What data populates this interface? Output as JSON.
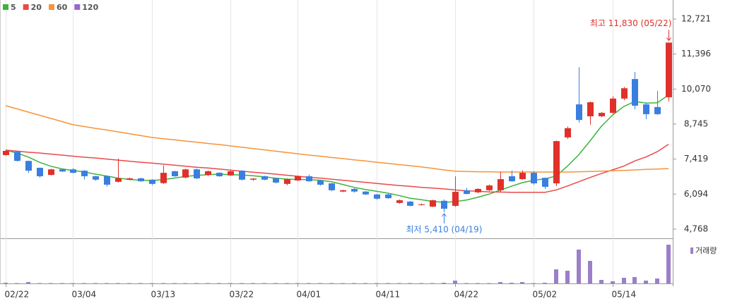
{
  "chart_data": {
    "type": "candlestick",
    "legend": "top-left",
    "up_color": "#e0302a",
    "down_color": "#3a7fe0",
    "categories": [
      "02/22",
      null,
      null,
      null,
      null,
      null,
      "03/04",
      null,
      null,
      null,
      null,
      null,
      null,
      "03/13",
      null,
      null,
      null,
      null,
      null,
      null,
      "03/22",
      null,
      null,
      null,
      null,
      null,
      "04/01",
      null,
      null,
      null,
      null,
      null,
      null,
      "04/11",
      null,
      null,
      null,
      null,
      null,
      null,
      "04/22",
      null,
      null,
      null,
      null,
      null,
      null,
      "05/02",
      null,
      null,
      null,
      null,
      null,
      null,
      "05/14",
      null,
      null,
      null,
      null,
      null
    ],
    "open": [
      7570,
      7700,
      7350,
      7090,
      6820,
      7030,
      7030,
      6980,
      6770,
      6770,
      6560,
      6640,
      6690,
      6640,
      6510,
      6960,
      6720,
      7030,
      6820,
      6900,
      6800,
      6980,
      6640,
      6770,
      6690,
      6480,
      6610,
      6770,
      6610,
      6500,
      6190,
      6290,
      6190,
      6080,
      6080,
      5760,
      5810,
      5680,
      5620,
      5840,
      5650,
      6240,
      6160,
      6240,
      6240,
      6770,
      6660,
      6900,
      6710,
      6500,
      8240,
      9490,
      9040,
      9040,
      9170,
      9710,
      10450,
      9490,
      9390,
      9760
    ],
    "high": [
      7780,
      7720,
      7360,
      7100,
      7050,
      7050,
      7080,
      7000,
      6790,
      6780,
      7440,
      6720,
      6720,
      6660,
      7180,
      6980,
      7050,
      7060,
      6990,
      6920,
      6990,
      7000,
      6700,
      6790,
      6710,
      6690,
      6800,
      6830,
      6630,
      6520,
      6260,
      6320,
      6210,
      6100,
      6100,
      5890,
      5830,
      5730,
      5880,
      5890,
      6770,
      6330,
      6320,
      6460,
      6930,
      6980,
      6990,
      6960,
      6720,
      8120,
      8650,
      10900,
      9600,
      9200,
      9800,
      10150,
      10720,
      9560,
      10000,
      11830
    ],
    "low": [
      7550,
      7330,
      6900,
      6720,
      6800,
      6930,
      6880,
      6650,
      6600,
      6380,
      6530,
      6620,
      6560,
      6430,
      6480,
      6750,
      6690,
      6660,
      6770,
      6750,
      6780,
      6610,
      6600,
      6620,
      6500,
      6430,
      6590,
      6560,
      6420,
      6200,
      6170,
      6150,
      6060,
      5880,
      5910,
      5730,
      5630,
      5660,
      5600,
      5410,
      5610,
      6080,
      6130,
      6210,
      6160,
      6560,
      6640,
      6450,
      6290,
      6400,
      8180,
      8800,
      8720,
      9000,
      9130,
      9650,
      9300,
      8930,
      9090,
      9600
    ],
    "close": [
      7730,
      7350,
      6980,
      6770,
      7030,
      6950,
      6900,
      6770,
      6640,
      6450,
      6690,
      6690,
      6580,
      6480,
      6900,
      6770,
      7030,
      6690,
      6960,
      6770,
      6960,
      6640,
      6680,
      6640,
      6530,
      6660,
      6770,
      6580,
      6450,
      6240,
      6240,
      6190,
      6080,
      5920,
      5940,
      5860,
      5650,
      5710,
      5860,
      5540,
      6180,
      6100,
      6290,
      6420,
      6660,
      6580,
      6900,
      6500,
      6370,
      8100,
      8590,
      8900,
      9570,
      9170,
      9710,
      10100,
      9440,
      9120,
      9120,
      11830
    ],
    "series": [
      {
        "name": "5",
        "color": "#3cb43c",
        "values": [
          7760,
          7650,
          7500,
          7300,
          7150,
          7050,
          6990,
          6930,
          6850,
          6780,
          6700,
          6650,
          6620,
          6610,
          6640,
          6700,
          6760,
          6800,
          6830,
          6850,
          6830,
          6820,
          6790,
          6750,
          6700,
          6660,
          6650,
          6640,
          6620,
          6560,
          6460,
          6350,
          6270,
          6200,
          6130,
          6040,
          5940,
          5880,
          5820,
          5780,
          5810,
          5870,
          5970,
          6090,
          6240,
          6390,
          6530,
          6620,
          6670,
          6780,
          7150,
          7580,
          8100,
          8650,
          9080,
          9410,
          9600,
          9540,
          9550,
          9850
        ]
      },
      {
        "name": "20",
        "color": "#e84a4a",
        "values": [
          7760,
          7720,
          7680,
          7650,
          7610,
          7570,
          7530,
          7490,
          7460,
          7420,
          7380,
          7340,
          7300,
          7270,
          7230,
          7190,
          7150,
          7110,
          7080,
          7040,
          7000,
          6960,
          6920,
          6890,
          6850,
          6810,
          6770,
          6730,
          6700,
          6660,
          6620,
          6580,
          6540,
          6500,
          6460,
          6420,
          6390,
          6350,
          6320,
          6290,
          6250,
          6220,
          6200,
          6180,
          6170,
          6160,
          6160,
          6160,
          6160,
          6250,
          6400,
          6560,
          6720,
          6870,
          7010,
          7150,
          7350,
          7500,
          7700,
          7980
        ]
      },
      {
        "name": "60",
        "color": "#f5943a",
        "values": [
          9440,
          9320,
          9200,
          9080,
          8960,
          8840,
          8720,
          8650,
          8580,
          8520,
          8450,
          8380,
          8310,
          8240,
          8190,
          8150,
          8100,
          8060,
          8010,
          7970,
          7920,
          7870,
          7820,
          7770,
          7720,
          7670,
          7620,
          7570,
          7530,
          7480,
          7440,
          7390,
          7350,
          7300,
          7260,
          7210,
          7170,
          7120,
          7070,
          7010,
          6960,
          6950,
          6940,
          6940,
          6930,
          6930,
          6930,
          6930,
          6930,
          6930,
          6930,
          6940,
          6950,
          6960,
          6980,
          6990,
          7010,
          7030,
          7040,
          7060
        ]
      },
      {
        "name": "120",
        "color": "#9966cc",
        "values": [
          null,
          null,
          null,
          null,
          null,
          null,
          null,
          null,
          null,
          null,
          null,
          null,
          null,
          null,
          null,
          null,
          null,
          null,
          null,
          null,
          null,
          null,
          null,
          null,
          null,
          null,
          null,
          null,
          null,
          null,
          null,
          null,
          null,
          null,
          null,
          null,
          null,
          null,
          null,
          null,
          null,
          null,
          null,
          null,
          null,
          null,
          null,
          null,
          null,
          null,
          null,
          null,
          null,
          null,
          null,
          null,
          null,
          null,
          null,
          null
        ]
      }
    ],
    "ylim": [
      4420,
      13442
    ],
    "yticks": [
      {
        "value": 12721,
        "label": "12,721"
      },
      {
        "value": 11396,
        "label": "11,396"
      },
      {
        "value": 10070,
        "label": "10,070"
      },
      {
        "value": 8745,
        "label": "8,745"
      },
      {
        "value": 7419,
        "label": "7,419"
      },
      {
        "value": 6094,
        "label": "6,094"
      },
      {
        "value": 4768,
        "label": "4,768"
      }
    ],
    "annotations": [
      {
        "text": "최고 11,830 (05/22)",
        "color": "#e0302a"
      },
      {
        "text": "최저 5,410 (04/19)",
        "color": "#3a7fe0"
      }
    ],
    "volume": {
      "name": "거래량",
      "color": "#9b7fc8",
      "ylim": [
        0,
        62
      ],
      "values": [
        1,
        0.5,
        2,
        0.5,
        0.5,
        0.5,
        0.5,
        0.5,
        0.5,
        0.5,
        0.5,
        0.5,
        0.5,
        0.5,
        0.5,
        0.5,
        0.5,
        0.5,
        0.5,
        0.5,
        0.5,
        0.5,
        0.5,
        0.5,
        0.5,
        0.5,
        0.5,
        0.5,
        0.5,
        0.5,
        0.5,
        0.5,
        0.5,
        0.5,
        0.5,
        0.5,
        0.5,
        0.5,
        0.5,
        1,
        4,
        0.5,
        0.5,
        0.5,
        2,
        1,
        2,
        0.5,
        1,
        20,
        18,
        48,
        32,
        5,
        3,
        8,
        9,
        4,
        7,
        55
      ]
    }
  }
}
